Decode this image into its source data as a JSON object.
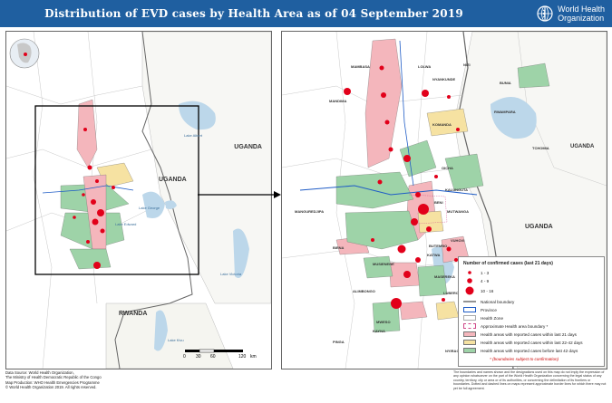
{
  "header": {
    "title": "Distribution of EVD cases by Health Area as of 04 September 2019",
    "org_line1": "World Health",
    "org_line2": "Organization"
  },
  "overview_labels": {
    "uganda1": "UGANDA",
    "uganda2": "UGANDA",
    "rwanda": "RWANDA",
    "lake_albert": "Lake Albert",
    "lake_edward": "Lake Edward",
    "lake_george": "Lake George",
    "lake_kivu": "Lake Kivu",
    "lake_victoria": "Lake Victoria"
  },
  "detail_labels": {
    "uganda_n": "UGANDA",
    "uganda_s": "UGANDA",
    "mangurejipa": "MANGUREDJIPA",
    "mandima": "MANDIMA",
    "mambasa": "MAMBASA",
    "nyankunde": "NYANKUNDE",
    "komanda": "KOMANDA",
    "lolwa": "LOLWA",
    "nizi": "NIZI",
    "bunia": "BUNIA",
    "rwampara": "RWAMPARA",
    "tchomia": "TCHOMIA",
    "mutwanga": "MUTWANGA",
    "kalunguta": "KALUNGUTA",
    "beni": "BENI",
    "oicha": "OICHA",
    "butembo": "BUTEMBO",
    "katwa": "KATWA",
    "musienene": "MUSIENENE",
    "vuhovi": "VUHOVI",
    "kyondo": "KYONDO",
    "masereka": "MASEREKA",
    "lubero": "LUBERO",
    "alimbongo": "ALIMBONGO",
    "biena": "BIENA",
    "pinga": "PINGA",
    "nyiragongo": "NYIRAGONGO",
    "mweso": "MWESO",
    "kayna": "KAYNA"
  },
  "legend": {
    "title": "Number of confirmed cases (last 21 days)",
    "c1": "1 - 3",
    "c2": "4 - 9",
    "c3": "10 - 16",
    "national": "National boundary",
    "province": "Province",
    "health_zone": "Health Zone",
    "approx": "Approximate Health area boundary *",
    "last21": "Health areas with reported cases within last 21 days",
    "d22_42": "Health areas with reported cases within last 22-42 days",
    "before42": "Health areas with reported cases before last 42 days",
    "note": "* (boundaries subject to confirmation)"
  },
  "scale": {
    "t0": "0",
    "t1": "30",
    "t2": "60",
    "t3": "120",
    "unit": "km"
  },
  "footer": {
    "line1": "Data Source: World Health Organization,",
    "line2": "The Ministry of Health Democratic Republic of the Congo",
    "line3": "Map Production: WHO Health Emergencies Programme",
    "line4": "© World Health Organization 2019. All rights reserved.",
    "disclaimer": "The boundaries and names shown and the designations used on this map do not imply the expression of any opinion whatsoever on the part of the World Health Organization concerning the legal status of any country, territory, city or area or of its authorities, or concerning the delimitation of its frontiers or boundaries. Dotted and dashed lines on maps represent approximate border lines for which there may not yet be full agreement."
  },
  "colors": {
    "header": "#1f5fa0",
    "last21": "#f4b6bc",
    "d22_42": "#f6e2a2",
    "before42": "#9ed3a8",
    "case_dot": "#e2001a",
    "province": "#1f5cc6",
    "lake": "#bcd7ea"
  }
}
